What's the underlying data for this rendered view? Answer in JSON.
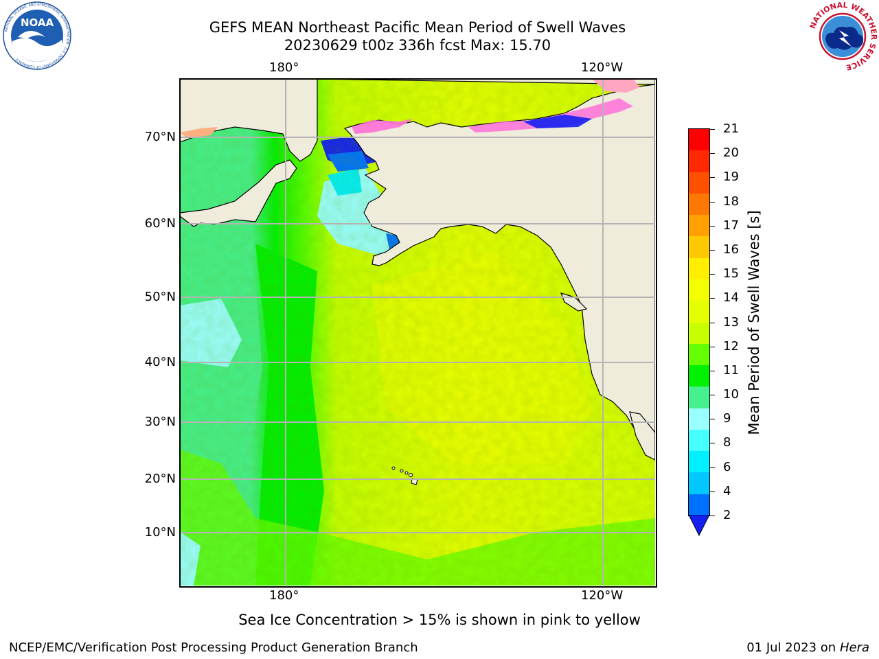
{
  "header": {
    "title_line1": "GEFS MEAN Northeast Pacific Mean Period of Swell Waves",
    "title_line2": "20230629 t00z 336h fcst   Max: 15.70"
  },
  "logos": {
    "left": "noaa-logo",
    "left_text": "NOAA",
    "left_ring_text": "NATIONAL OCEANIC AND ATMOSPHERIC ADMINISTRATION · U.S. DEPARTMENT OF COMMERCE",
    "right": "nws-logo",
    "right_ring_text": "NATIONAL WEATHER SERVICE"
  },
  "map": {
    "lon_labels_top": [
      "180°",
      "120°W"
    ],
    "lon_labels_bottom": [
      "180°",
      "120°W"
    ],
    "lat_labels": [
      "70°N",
      "60°N",
      "50°N",
      "40°N",
      "30°N",
      "20°N",
      "10°N"
    ],
    "land_color": "#efecdc",
    "gridline_color": "#b4b4b4"
  },
  "colorbar": {
    "label": "Mean Period of Swell Waves [s]",
    "ticks": [
      "21",
      "20",
      "19",
      "18",
      "17",
      "16",
      "15",
      "14",
      "13",
      "12",
      "11",
      "10",
      "9",
      "8",
      "6",
      "4",
      "2"
    ],
    "colors_top_to_bottom": [
      "#ff0000",
      "#ff2800",
      "#ff5000",
      "#ff7800",
      "#ffa000",
      "#ffc800",
      "#ffee00",
      "#f2ff00",
      "#e6ff00",
      "#c8ff00",
      "#64ff00",
      "#00f000",
      "#46f08c",
      "#9affff",
      "#46ffff",
      "#00f0ff",
      "#00c8ff",
      "#0070ff"
    ],
    "under_color": "#1420f0"
  },
  "note": "Sea Ice Concentration > 15% is shown in pink to yellow",
  "footer": {
    "left": "NCEP/EMC/Verification Post Processing Product Generation Branch",
    "right_date": "01 Jul 2023 on",
    "right_host": "Hera"
  }
}
